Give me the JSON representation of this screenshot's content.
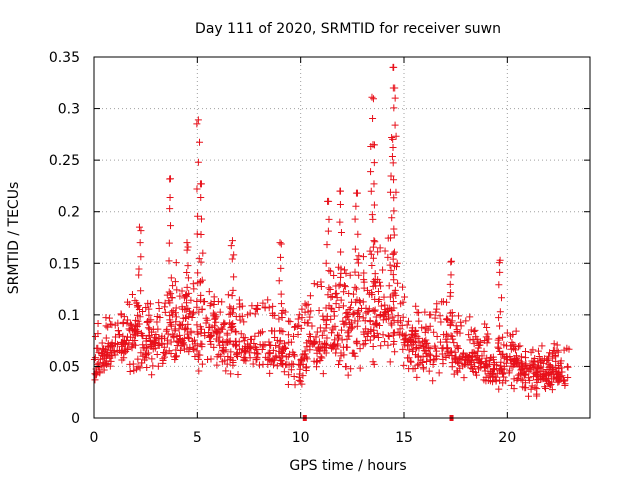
{
  "chart_data": {
    "type": "scatter",
    "title": "Day 111 of 2020, SRMTID for receiver suwn",
    "xlabel": "GPS time / hours",
    "ylabel": "SRMTID / TECUs",
    "xlim": [
      0,
      24
    ],
    "ylim": [
      0,
      0.35
    ],
    "xticks": [
      0,
      5,
      10,
      15,
      20
    ],
    "yticks": [
      0,
      0.05,
      0.1,
      0.15,
      0.2,
      0.25,
      0.3,
      0.35
    ],
    "xtick_labels": [
      "0",
      "5",
      "10",
      "15",
      "20"
    ],
    "ytick_labels": [
      "0",
      "0.05",
      "0.1",
      "0.15",
      "0.2",
      "0.25",
      "0.3",
      "0.35"
    ],
    "grid": true,
    "marker": "+",
    "color": "#e8101a",
    "envelope": {
      "x": [
        0,
        0.5,
        1,
        1.5,
        2,
        2.5,
        3,
        3.5,
        4,
        4.5,
        5,
        5.5,
        6,
        6.5,
        7,
        7.5,
        8,
        8.5,
        9,
        9.5,
        10,
        10.5,
        11,
        11.5,
        12,
        12.5,
        13,
        13.5,
        14,
        14.5,
        15,
        15.5,
        16,
        16.5,
        17,
        17.5,
        18,
        18.5,
        19,
        19.5,
        20,
        20.5,
        21,
        21.5,
        22,
        22.5,
        23
      ],
      "low": [
        0.03,
        0.04,
        0.04,
        0.04,
        0.04,
        0.04,
        0.04,
        0.04,
        0.05,
        0.05,
        0.04,
        0.05,
        0.04,
        0.04,
        0.04,
        0.04,
        0.04,
        0.04,
        0.04,
        0.03,
        0.03,
        0.04,
        0.04,
        0.04,
        0.04,
        0.04,
        0.05,
        0.05,
        0.05,
        0.05,
        0.04,
        0.04,
        0.04,
        0.04,
        0.04,
        0.04,
        0.04,
        0.04,
        0.03,
        0.03,
        0.03,
        0.03,
        0.02,
        0.02,
        0.02,
        0.02,
        0.03
      ],
      "mid": [
        0.055,
        0.065,
        0.07,
        0.075,
        0.08,
        0.075,
        0.07,
        0.075,
        0.09,
        0.085,
        0.085,
        0.09,
        0.075,
        0.07,
        0.075,
        0.07,
        0.07,
        0.065,
        0.065,
        0.06,
        0.055,
        0.075,
        0.08,
        0.085,
        0.09,
        0.095,
        0.1,
        0.1,
        0.1,
        0.105,
        0.08,
        0.075,
        0.065,
        0.07,
        0.07,
        0.065,
        0.06,
        0.06,
        0.055,
        0.05,
        0.055,
        0.05,
        0.045,
        0.045,
        0.045,
        0.045,
        0.05
      ],
      "high": [
        0.09,
        0.095,
        0.1,
        0.11,
        0.12,
        0.11,
        0.11,
        0.12,
        0.15,
        0.13,
        0.14,
        0.13,
        0.11,
        0.12,
        0.12,
        0.11,
        0.12,
        0.11,
        0.12,
        0.1,
        0.1,
        0.13,
        0.14,
        0.15,
        0.15,
        0.15,
        0.16,
        0.17,
        0.17,
        0.18,
        0.12,
        0.11,
        0.1,
        0.11,
        0.12,
        0.1,
        0.1,
        0.09,
        0.09,
        0.08,
        0.09,
        0.08,
        0.07,
        0.07,
        0.07,
        0.07,
        0.08
      ]
    },
    "spikes": [
      {
        "x": 2.2,
        "ymax": 0.185
      },
      {
        "x": 3.7,
        "ymax": 0.232
      },
      {
        "x": 4.5,
        "ymax": 0.17
      },
      {
        "x": 5.05,
        "ymax": 0.289
      },
      {
        "x": 5.2,
        "ymax": 0.227
      },
      {
        "x": 6.7,
        "ymax": 0.172
      },
      {
        "x": 9.0,
        "ymax": 0.17
      },
      {
        "x": 11.3,
        "ymax": 0.21
      },
      {
        "x": 11.9,
        "ymax": 0.22
      },
      {
        "x": 12.7,
        "ymax": 0.218
      },
      {
        "x": 13.45,
        "ymax": 0.311
      },
      {
        "x": 13.5,
        "ymax": 0.265
      },
      {
        "x": 14.5,
        "ymax": 0.34
      },
      {
        "x": 14.55,
        "ymax": 0.32
      },
      {
        "x": 14.4,
        "ymax": 0.272
      },
      {
        "x": 17.3,
        "ymax": 0.152
      },
      {
        "x": 19.65,
        "ymax": 0.153
      }
    ],
    "gap_markers": [
      {
        "x": 10.2,
        "y": 0
      },
      {
        "x": 17.3,
        "y": 0
      }
    ]
  }
}
